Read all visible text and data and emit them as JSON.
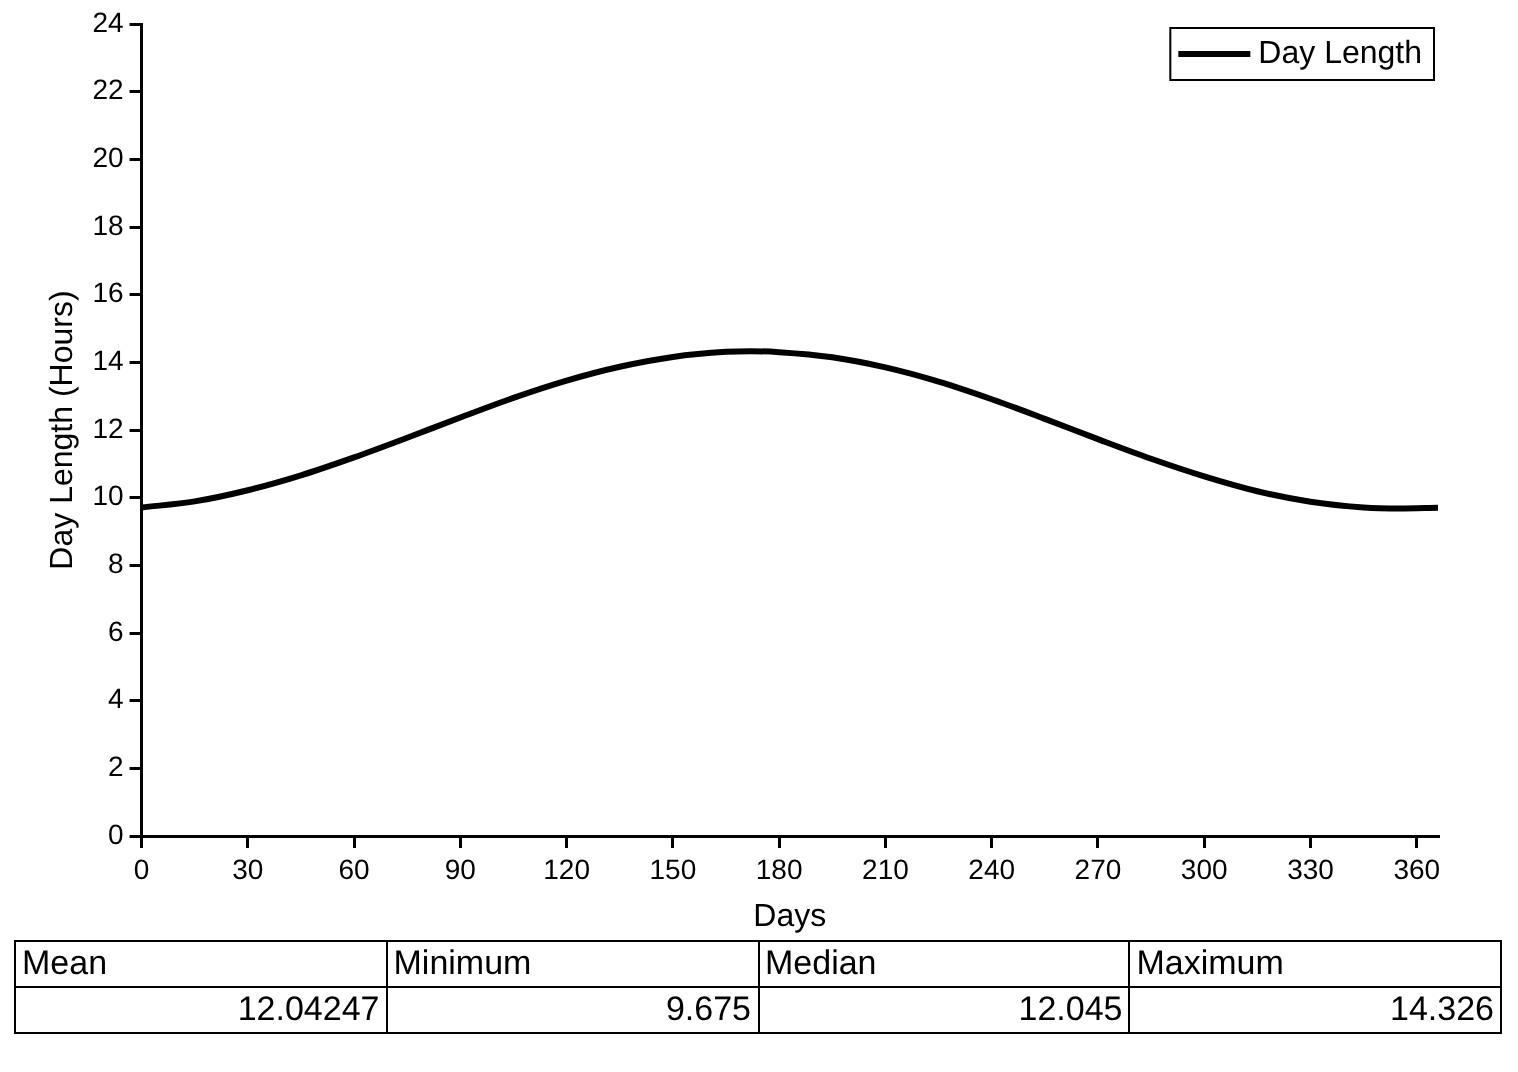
{
  "chart_data": {
    "type": "line",
    "xlabel": "Days",
    "ylabel": "Day Length (Hours)",
    "x": [
      0,
      15,
      30,
      45,
      60,
      75,
      90,
      105,
      120,
      135,
      150,
      165,
      172,
      180,
      195,
      210,
      225,
      240,
      255,
      270,
      285,
      300,
      315,
      330,
      345,
      355,
      366
    ],
    "series": [
      {
        "name": "Day Length",
        "color": "#000000",
        "values": [
          9.71,
          9.89,
          10.22,
          10.66,
          11.19,
          11.77,
          12.37,
          12.95,
          13.46,
          13.87,
          14.16,
          14.31,
          14.33,
          14.3,
          14.15,
          13.85,
          13.43,
          12.91,
          12.33,
          11.73,
          11.15,
          10.63,
          10.19,
          9.88,
          9.71,
          9.68,
          9.7
        ]
      }
    ],
    "xlim": [
      0,
      366
    ],
    "xticks": [
      0,
      30,
      60,
      90,
      120,
      150,
      180,
      210,
      240,
      270,
      300,
      330,
      360
    ],
    "ylim": [
      0,
      24
    ],
    "yticks": [
      0,
      2,
      4,
      6,
      8,
      10,
      12,
      14,
      16,
      18,
      20,
      22,
      24
    ],
    "grid": false,
    "legend": "top right",
    "marker": "none",
    "line_style": "solid",
    "annotations": [
      "Mean",
      "Minimum",
      "Median",
      "Maximum",
      "12.04247",
      "9.675",
      "12.045",
      "14.326"
    ]
  }
}
